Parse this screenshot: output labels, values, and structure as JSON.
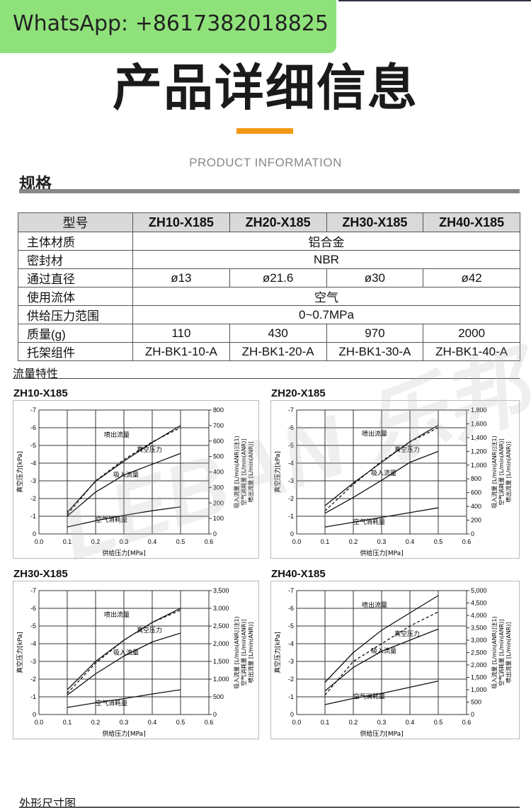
{
  "whatsapp_label": "WhatsApp: +8617382018825",
  "page_title": "产品详细信息",
  "subtitle": "PRODUCT INFORMATION",
  "spec_section_title": "规格",
  "spec_table": {
    "headers": [
      "型号",
      "ZH10-X185",
      "ZH20-X185",
      "ZH30-X185",
      "ZH40-X185"
    ],
    "rows": [
      {
        "label": "主体材质",
        "merged": "铝合金"
      },
      {
        "label": "密封材",
        "merged": "NBR"
      },
      {
        "label": "通过直径",
        "cells": [
          "ø13",
          "ø21.6",
          "ø30",
          "ø42"
        ]
      },
      {
        "label": "使用流体",
        "merged": "空气"
      },
      {
        "label": "供给压力范围",
        "merged": "0~0.7MPa"
      },
      {
        "label": "质量(g)",
        "cells": [
          "110",
          "430",
          "970",
          "2000"
        ]
      },
      {
        "label": "托架组件",
        "cells": [
          "ZH-BK1-10-A",
          "ZH-BK1-20-A",
          "ZH-BK1-30-A",
          "ZH-BK1-40-A"
        ]
      }
    ]
  },
  "flow_section_title": "流量特性",
  "watermark_text": "LEBAN 乐邦气动",
  "dimension_section_title": "外形尺寸图",
  "chart_data": [
    {
      "type": "line",
      "title": "ZH10-X185",
      "xlabel": "供给压力[MPa]",
      "ylabel_left": "真空压力[kPa]",
      "ylabel_right": "吸入流量 [L/min(ANR)]注1) / 空气消耗量 [L/min(ANR)] / 喷出流量 [L/min(ANR)]",
      "x_ticks": [
        "0.0",
        "0.1",
        "0.2",
        "0.3",
        "0.4",
        "0.5",
        "0.6"
      ],
      "y_left_ticks": [
        "-7",
        "-6",
        "-5",
        "-4",
        "-3",
        "-2",
        "-1",
        "0"
      ],
      "y_right_ticks": [
        "800",
        "700",
        "600",
        "500",
        "400",
        "300",
        "200",
        "100",
        "0"
      ],
      "xlim": [
        0,
        0.6
      ],
      "ylim_left": [
        -7,
        0
      ],
      "ylim_right": [
        0,
        800
      ],
      "x": [
        0.1,
        0.2,
        0.3,
        0.4,
        0.5
      ],
      "series": [
        {
          "name": "喷出流量",
          "axis": "right",
          "style": "solid",
          "values": [
            140,
            340,
            470,
            590,
            700
          ]
        },
        {
          "name": "真空压力",
          "axis": "left",
          "style": "dashed",
          "values": [
            -1.1,
            -3.0,
            -4.2,
            -5.2,
            -6.0
          ]
        },
        {
          "name": "吸入流量",
          "axis": "right",
          "style": "solid",
          "values": [
            115,
            270,
            380,
            450,
            520
          ]
        },
        {
          "name": "空气消耗量",
          "axis": "right",
          "style": "solid",
          "values": [
            45,
            85,
            120,
            150,
            175
          ]
        }
      ]
    },
    {
      "type": "line",
      "title": "ZH20-X185",
      "xlabel": "供给压力[MPa]",
      "ylabel_left": "真空压力[kPa]",
      "ylabel_right": "吸入流量 [L/min(ANR)]注1) / 空气消耗量 [L/min(ANR)] / 喷出流量 [L/min(ANR)]",
      "x_ticks": [
        "0.0",
        "0.1",
        "0.2",
        "0.3",
        "0.4",
        "0.5",
        "0.6"
      ],
      "y_left_ticks": [
        "-7",
        "-6",
        "-5",
        "-4",
        "-3",
        "-2",
        "-1",
        "0"
      ],
      "y_right_ticks": [
        "1,800",
        "1,600",
        "1,400",
        "1,200",
        "1,000",
        "800",
        "600",
        "400",
        "200",
        "0"
      ],
      "xlim": [
        0,
        0.6
      ],
      "ylim_left": [
        -7,
        0
      ],
      "ylim_right": [
        0,
        1800
      ],
      "x": [
        0.1,
        0.2,
        0.3,
        0.4,
        0.5
      ],
      "series": [
        {
          "name": "喷出流量",
          "axis": "right",
          "style": "solid",
          "values": [
            410,
            740,
            1040,
            1340,
            1580
          ]
        },
        {
          "name": "真空压力",
          "axis": "left",
          "style": "dashed",
          "values": [
            -1.3,
            -2.8,
            -4.1,
            -5.2,
            -6.0
          ]
        },
        {
          "name": "吸入流量",
          "axis": "right",
          "style": "solid",
          "values": [
            300,
            530,
            780,
            1040,
            1200
          ]
        },
        {
          "name": "空气消耗量",
          "axis": "right",
          "style": "solid",
          "values": [
            100,
            170,
            240,
            310,
            380
          ]
        }
      ]
    },
    {
      "type": "line",
      "title": "ZH30-X185",
      "xlabel": "供给压力[MPa]",
      "ylabel_left": "真空压力[kPa]",
      "ylabel_right": "吸入流量 [L/min(ANR)]注1) / 空气消耗量 [L/min(ANR)] / 喷出流量 [L/min(ANR)]",
      "x_ticks": [
        "0.0",
        "0.1",
        "0.2",
        "0.3",
        "0.4",
        "0.5",
        "0.6"
      ],
      "y_left_ticks": [
        "-7",
        "-6",
        "-5",
        "-4",
        "-3",
        "-2",
        "-1",
        "0"
      ],
      "y_right_ticks": [
        "3,500",
        "3,000",
        "2,500",
        "2,000",
        "1,500",
        "1,000",
        "500",
        "0"
      ],
      "xlim": [
        0,
        0.6
      ],
      "ylim_left": [
        -7,
        0
      ],
      "ylim_right": [
        0,
        3500
      ],
      "x": [
        0.1,
        0.2,
        0.3,
        0.4,
        0.5
      ],
      "series": [
        {
          "name": "喷出流量",
          "axis": "right",
          "style": "solid",
          "values": [
            700,
            1500,
            2100,
            2600,
            3000
          ]
        },
        {
          "name": "真空压力",
          "axis": "left",
          "style": "dashed",
          "values": [
            -1.2,
            -2.9,
            -4.2,
            -5.2,
            -5.9
          ]
        },
        {
          "name": "吸入流量",
          "axis": "right",
          "style": "solid",
          "values": [
            550,
            1150,
            1650,
            2050,
            2300
          ]
        },
        {
          "name": "空气消耗量",
          "axis": "right",
          "style": "solid",
          "values": [
            200,
            330,
            450,
            580,
            700
          ]
        }
      ]
    },
    {
      "type": "line",
      "title": "ZH40-X185",
      "xlabel": "供给压力[MPa]",
      "ylabel_left": "真空压力[kPa]",
      "ylabel_right": "吸入流量 [L/min(ANR)]注1) / 空气消耗量 [L/min(ANR)] / 喷出流量 [L/min(ANR)]",
      "x_ticks": [
        "0.0",
        "0.1",
        "0.2",
        "0.3",
        "0.4",
        "0.5",
        "0.6"
      ],
      "y_left_ticks": [
        "-7",
        "-6",
        "-5",
        "-4",
        "-3",
        "-2",
        "-1",
        "0"
      ],
      "y_right_ticks": [
        "5,000",
        "4,500",
        "4,000",
        "3,500",
        "3,000",
        "2,500",
        "2,000",
        "1,500",
        "1,000",
        "500",
        "0"
      ],
      "xlim": [
        0,
        0.6
      ],
      "ylim_left": [
        -7,
        0
      ],
      "ylim_right": [
        0,
        5000
      ],
      "x": [
        0.1,
        0.2,
        0.3,
        0.4,
        0.5
      ],
      "series": [
        {
          "name": "喷出流量",
          "axis": "right",
          "style": "solid",
          "values": [
            1300,
            2500,
            3400,
            4100,
            4800
          ]
        },
        {
          "name": "真空压力",
          "axis": "left",
          "style": "dashed",
          "values": [
            -1.1,
            -3.0,
            -4.0,
            -5.0,
            -5.8
          ]
        },
        {
          "name": "吸入流量",
          "axis": "right",
          "style": "solid",
          "values": [
            950,
            1900,
            2550,
            3000,
            3450
          ]
        },
        {
          "name": "空气消耗量",
          "axis": "right",
          "style": "solid",
          "values": [
            400,
            650,
            850,
            1100,
            1350
          ]
        }
      ]
    }
  ]
}
